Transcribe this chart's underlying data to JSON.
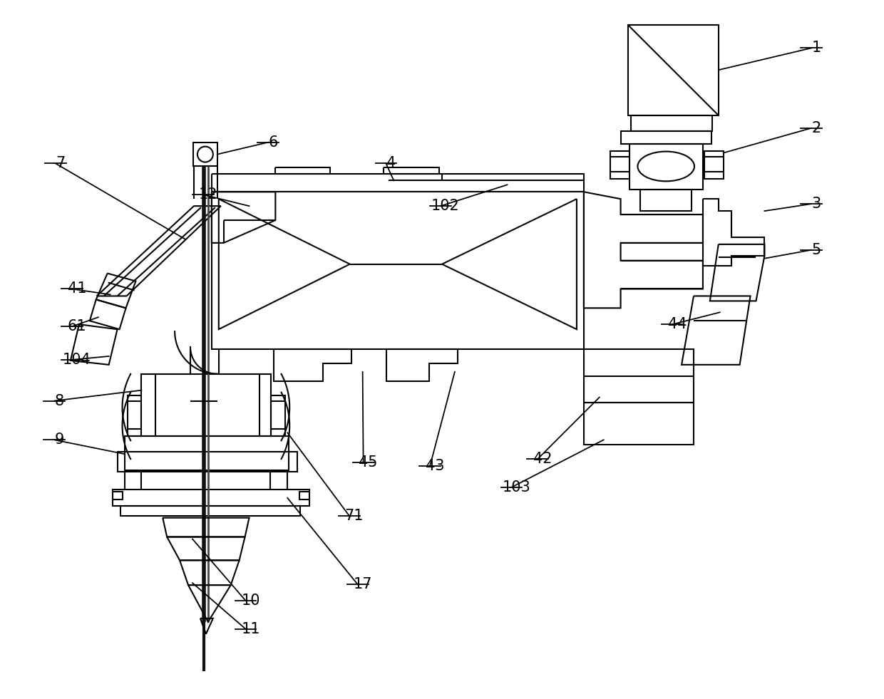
{
  "background_color": "#ffffff",
  "line_color": "#000000",
  "lw": 1.5,
  "thick_lw": 4.0,
  "fig_width": 12.4,
  "fig_height": 9.81,
  "dpi": 100
}
